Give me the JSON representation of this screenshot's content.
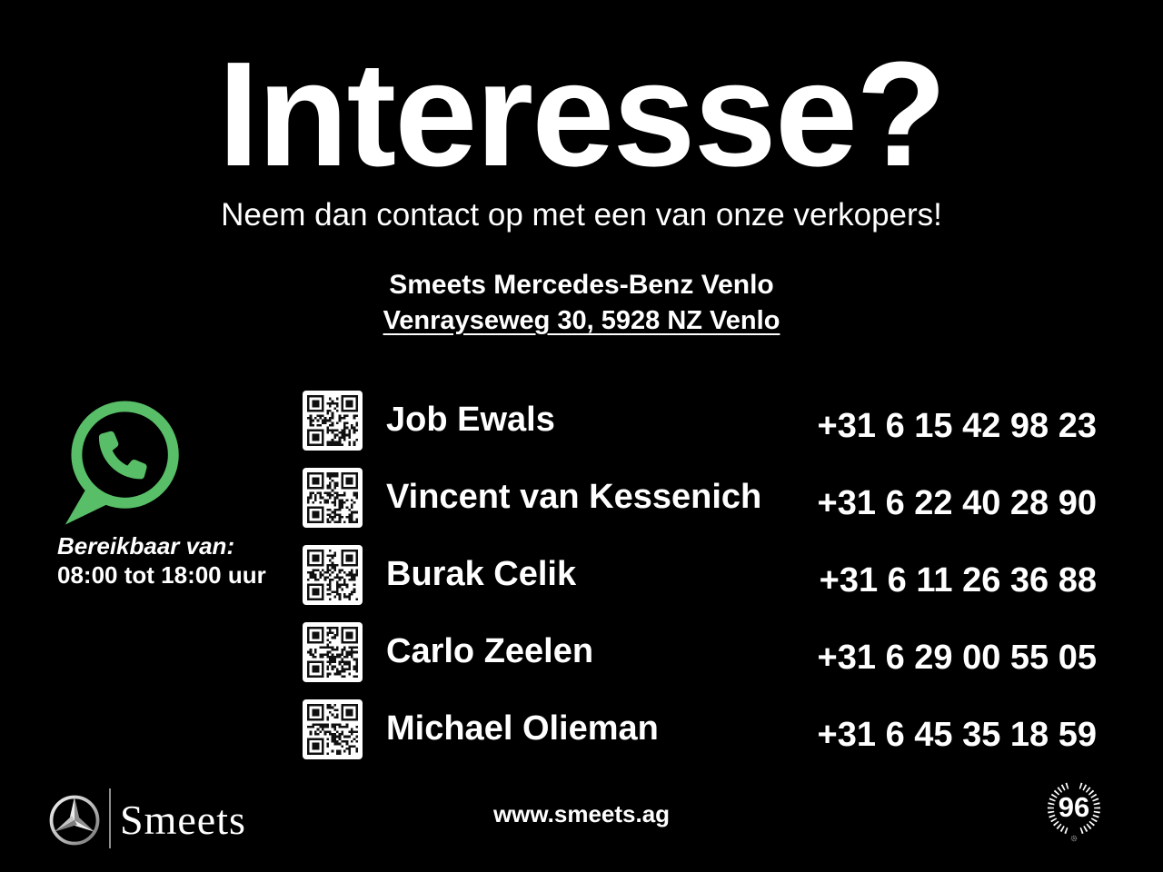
{
  "colors": {
    "bg": "#000000",
    "fg": "#ffffff",
    "whatsapp_green": "#58BE68",
    "silver_light": "#ededed",
    "silver_dark": "#8f8f8f",
    "qr_dark": "#101010"
  },
  "header": {
    "title": "Interesse?",
    "subtitle": "Neem dan contact op met een van onze verkopers!"
  },
  "dealer": {
    "name": "Smeets Mercedes-Benz Venlo",
    "address": "Venrayseweg 30, 5928 NZ Venlo"
  },
  "availability": {
    "label": "Bereikbaar van:",
    "hours": "08:00 tot 18:00 uur"
  },
  "contacts": [
    {
      "name": "Job Ewals",
      "phone": "+31 6 15 42 98 23",
      "qr_seed": 11
    },
    {
      "name": "Vincent van Kessenich",
      "phone": "+31 6 22 40 28 90",
      "qr_seed": 29
    },
    {
      "name": "Burak Celik",
      "phone": "+31 6 11 26 36 88",
      "qr_seed": 47
    },
    {
      "name": "Carlo Zeelen",
      "phone": "+31 6 29 00 55 05",
      "qr_seed": 63
    },
    {
      "name": "Michael Olieman",
      "phone": "+31 6 45 35 18 59",
      "qr_seed": 85
    }
  ],
  "footer": {
    "brand": "Smeets",
    "website": "www.smeets.ag",
    "badge_number": "96"
  },
  "icons": {
    "whatsapp": "whatsapp-icon",
    "qr": "qr-code-icon",
    "mercedes": "mercedes-star-icon",
    "laurel": "laurel-badge-icon"
  }
}
